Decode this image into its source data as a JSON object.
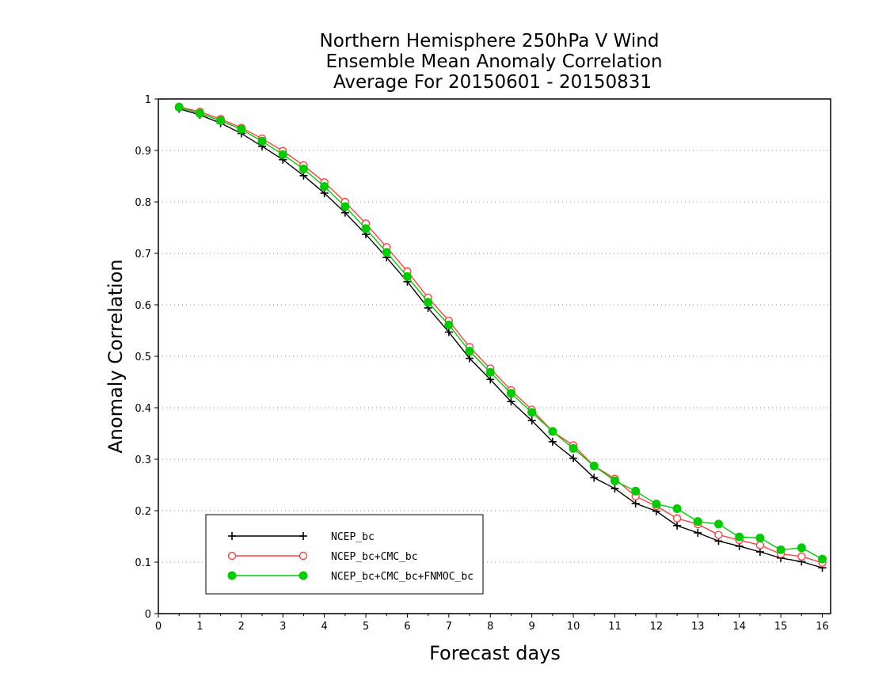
{
  "chart_data": {
    "type": "line",
    "title": [
      "Northern Hemisphere 250hPa V Wind",
      "Ensemble Mean Anomaly Correlation",
      "Average For 20150601 - 20150831"
    ],
    "xlabel": "Forecast days",
    "ylabel": "Anomaly Correlation",
    "xlim": [
      0,
      16.2
    ],
    "ylim": [
      0,
      1
    ],
    "x_ticks": [
      "0",
      "1",
      "2",
      "3",
      "4",
      "5",
      "6",
      "7",
      "8",
      "9",
      "10",
      "11",
      "12",
      "13",
      "14",
      "15",
      "16"
    ],
    "y_ticks": [
      "0",
      "0.1",
      "0.2",
      "0.3",
      "0.4",
      "0.5",
      "0.6",
      "0.7",
      "0.8",
      "0.9",
      "1"
    ],
    "grid": "dotted horizontal",
    "legend_position": "bottom-left",
    "x": [
      0.5,
      1,
      1.5,
      2,
      2.5,
      3,
      3.5,
      4,
      4.5,
      5,
      5.5,
      6,
      6.5,
      7,
      7.5,
      8,
      8.5,
      9,
      9.5,
      10,
      10.5,
      11,
      11.5,
      12,
      12.5,
      13,
      13.5,
      14,
      14.5,
      15,
      15.5,
      16
    ],
    "series": [
      {
        "name": "NCEP_bc",
        "color": "#000000",
        "marker": "plus",
        "values": [
          0.981,
          0.969,
          0.953,
          0.933,
          0.908,
          0.882,
          0.851,
          0.817,
          0.779,
          0.737,
          0.692,
          0.645,
          0.594,
          0.547,
          0.496,
          0.455,
          0.412,
          0.375,
          0.334,
          0.302,
          0.264,
          0.243,
          0.214,
          0.199,
          0.171,
          0.157,
          0.141,
          0.131,
          0.12,
          0.108,
          0.101,
          0.089
        ]
      },
      {
        "name": "NCEP_bc+CMC_bc",
        "color": "#ff4040",
        "marker": "open-circle",
        "values": [
          0.985,
          0.975,
          0.961,
          0.944,
          0.923,
          0.899,
          0.871,
          0.838,
          0.8,
          0.758,
          0.712,
          0.665,
          0.614,
          0.569,
          0.518,
          0.476,
          0.434,
          0.396,
          0.354,
          0.327,
          0.287,
          0.262,
          0.228,
          0.209,
          0.185,
          0.174,
          0.153,
          0.143,
          0.133,
          0.116,
          0.111,
          0.099
        ]
      },
      {
        "name": "NCEP_bc+CMC_bc+FNMOC_bc",
        "color": "#00cc00",
        "marker": "filled-circle",
        "values": [
          0.984,
          0.972,
          0.958,
          0.941,
          0.918,
          0.892,
          0.864,
          0.83,
          0.791,
          0.748,
          0.702,
          0.655,
          0.605,
          0.561,
          0.51,
          0.469,
          0.428,
          0.391,
          0.354,
          0.321,
          0.287,
          0.258,
          0.238,
          0.213,
          0.204,
          0.179,
          0.174,
          0.149,
          0.147,
          0.124,
          0.128,
          0.106
        ]
      }
    ]
  }
}
